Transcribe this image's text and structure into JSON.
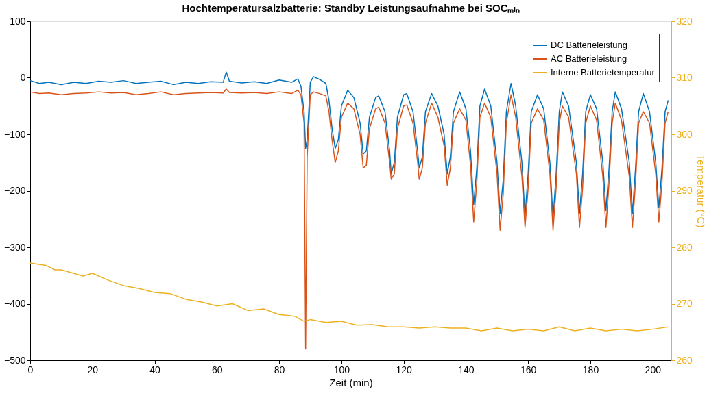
{
  "chart_data": {
    "type": "line",
    "title": "Hochtemperatursalzbatterie: Standby Leistungsaufnahme bei SOCₘᵢₙ",
    "xlabel": "Zeit (min)",
    "y2label": "Temperatur (°C)",
    "xlim": [
      0,
      206
    ],
    "xticks": [
      0,
      20,
      40,
      60,
      80,
      100,
      120,
      140,
      160,
      180,
      200
    ],
    "ylim": [
      -500,
      100
    ],
    "yticks": [
      -500,
      -400,
      -300,
      -200,
      -100,
      0,
      100
    ],
    "y2lim": [
      260,
      320
    ],
    "y2ticks": [
      260,
      270,
      280,
      290,
      300,
      310,
      320
    ],
    "grid": false,
    "legend": "top right",
    "line_style": "solid",
    "marker": "none",
    "x": [
      0,
      3,
      6,
      10,
      14,
      18,
      22,
      26,
      30,
      34,
      38,
      42,
      46,
      50,
      54,
      58,
      62,
      63,
      64,
      68,
      72,
      76,
      80,
      84,
      86,
      87,
      88,
      88.5,
      89,
      90,
      91,
      93,
      95,
      96,
      97,
      98,
      99,
      100,
      102,
      104,
      106,
      107,
      108,
      109,
      111,
      112,
      114,
      115.5,
      116,
      117,
      118,
      120,
      121,
      123,
      124.5,
      125,
      126,
      127,
      129,
      131,
      133,
      134,
      135,
      136,
      138,
      140,
      141.5,
      142.5,
      143.5,
      144.5,
      146,
      148,
      150,
      151,
      152,
      153,
      154.5,
      156,
      158,
      159,
      160,
      161,
      163,
      165,
      167,
      168,
      169,
      170,
      171,
      173,
      175.5,
      176.5,
      177.5,
      178.5,
      180,
      182,
      184,
      185,
      186,
      187,
      188,
      190,
      192.5,
      193.5,
      194.5,
      195.5,
      197,
      199,
      201,
      202,
      203,
      204,
      205
    ],
    "series": [
      {
        "name": "DC Batterieleistung",
        "color": "#0072bd",
        "values": [
          -5,
          -10,
          -8,
          -12,
          -8,
          -10,
          -6,
          -8,
          -5,
          -10,
          -8,
          -6,
          -12,
          -8,
          -10,
          -7,
          -8,
          10,
          -6,
          -9,
          -7,
          -10,
          -4,
          -8,
          -2,
          -15,
          -60,
          -125,
          -110,
          -8,
          2,
          -3,
          -10,
          -40,
          -90,
          -125,
          -110,
          -50,
          -22,
          -35,
          -80,
          -135,
          -130,
          -70,
          -35,
          -32,
          -60,
          -130,
          -170,
          -150,
          -70,
          -30,
          -28,
          -60,
          -130,
          -160,
          -140,
          -60,
          -28,
          -50,
          -100,
          -170,
          -140,
          -60,
          -25,
          -55,
          -130,
          -225,
          -160,
          -50,
          -20,
          -50,
          -150,
          -240,
          -180,
          -60,
          -10,
          -50,
          -150,
          -245,
          -170,
          -60,
          -30,
          -55,
          -150,
          -250,
          -170,
          -60,
          -25,
          -50,
          -150,
          -240,
          -170,
          -60,
          -30,
          -55,
          -150,
          -235,
          -160,
          -60,
          -25,
          -55,
          -150,
          -240,
          -160,
          -60,
          -28,
          -60,
          -150,
          -230,
          -160,
          -60,
          -40
        ]
      },
      {
        "name": "AC Batterieleistung",
        "color": "#d95319",
        "values": [
          -25,
          -28,
          -27,
          -30,
          -28,
          -27,
          -25,
          -27,
          -26,
          -30,
          -28,
          -25,
          -30,
          -28,
          -27,
          -26,
          -27,
          -20,
          -26,
          -27,
          -26,
          -28,
          -25,
          -28,
          -22,
          -30,
          -80,
          -480,
          -140,
          -30,
          -25,
          -28,
          -32,
          -60,
          -110,
          -150,
          -130,
          -70,
          -45,
          -55,
          -100,
          -160,
          -155,
          -90,
          -55,
          -52,
          -80,
          -150,
          -180,
          -170,
          -90,
          -50,
          -48,
          -80,
          -150,
          -180,
          -160,
          -80,
          -45,
          -70,
          -120,
          -190,
          -160,
          -80,
          -55,
          -75,
          -155,
          -255,
          -185,
          -70,
          -45,
          -70,
          -170,
          -270,
          -205,
          -80,
          -30,
          -70,
          -175,
          -265,
          -195,
          -80,
          -55,
          -75,
          -170,
          -270,
          -195,
          -80,
          -50,
          -70,
          -170,
          -265,
          -195,
          -80,
          -50,
          -75,
          -175,
          -265,
          -185,
          -80,
          -45,
          -75,
          -175,
          -265,
          -185,
          -80,
          -60,
          -80,
          -170,
          -255,
          -185,
          -80,
          -60
        ]
      },
      {
        "name": "Interne Batterietemperatur",
        "color": "#edb120",
        "axis": "y2",
        "x": [
          0,
          5,
          8,
          10,
          17,
          20,
          25,
          30,
          35,
          40,
          45,
          50,
          55,
          60,
          65,
          70,
          75,
          80,
          85,
          88,
          90,
          95,
          100,
          105,
          110,
          115,
          120,
          125,
          130,
          135,
          140,
          145,
          150,
          155,
          160,
          165,
          170,
          175,
          180,
          185,
          190,
          195,
          200,
          205
        ],
        "values": [
          277.2,
          276.8,
          276,
          276,
          274.9,
          275.4,
          274.2,
          273.2,
          272.7,
          272,
          271.8,
          270.8,
          270.3,
          269.6,
          270,
          268.8,
          269.1,
          268.1,
          267.8,
          266.9,
          267.2,
          266.7,
          266.9,
          266.2,
          266.3,
          265.9,
          265.9,
          265.7,
          265.9,
          265.7,
          265.7,
          265.2,
          265.7,
          265.2,
          265.5,
          265.2,
          265.9,
          265.2,
          265.7,
          265.2,
          265.5,
          265.2,
          265.5,
          265.9
        ]
      }
    ]
  }
}
